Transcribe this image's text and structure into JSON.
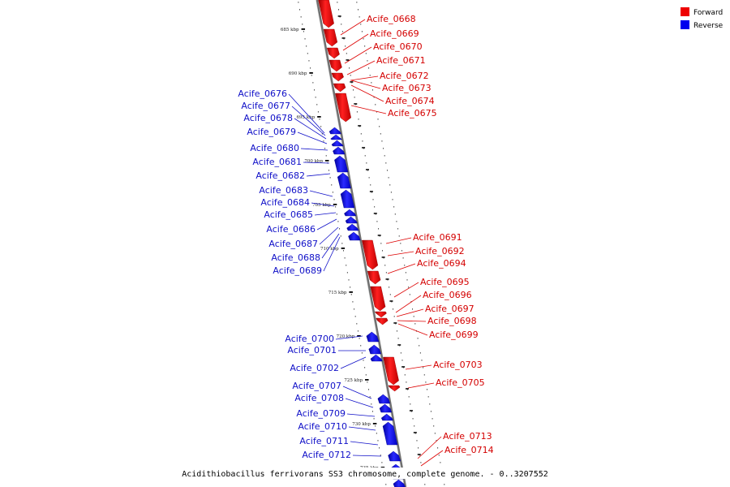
{
  "legend": {
    "forward_label": "Forward",
    "reverse_label": "Reverse",
    "forward_color": "#ee0000",
    "reverse_color": "#0000ee"
  },
  "caption": "Acidithiobacillus ferrivorans SS3 chromosome, complete genome. - 0..3207552",
  "tick_labels": [
    "685 kbp",
    "690 kbp",
    "695 kbp",
    "700 kbp",
    "705 kbp",
    "710 kbp",
    "715 kbp",
    "720 kbp",
    "725 kbp",
    "730 kbp",
    "735 kbp"
  ],
  "genes_forward": [
    "Acife_0668",
    "Acife_0669",
    "Acife_0670",
    "Acife_0671",
    "Acife_0672",
    "Acife_0673",
    "Acife_0674",
    "Acife_0675",
    "Acife_0691",
    "Acife_0692",
    "Acife_0694",
    "Acife_0695",
    "Acife_0696",
    "Acife_0697",
    "Acife_0698",
    "Acife_0699",
    "Acife_0703",
    "Acife_0705",
    "Acife_0713",
    "Acife_0714"
  ],
  "genes_reverse": [
    "Acife_0676",
    "Acife_0677",
    "Acife_0678",
    "Acife_0679",
    "Acife_0680",
    "Acife_0681",
    "Acife_0682",
    "Acife_0683",
    "Acife_0684",
    "Acife_0685",
    "Acife_0686",
    "Acife_0687",
    "Acife_0688",
    "Acife_0689",
    "Acife_0700",
    "Acife_0701",
    "Acife_0702",
    "Acife_0707",
    "Acife_0708",
    "Acife_0709",
    "Acife_0710",
    "Acife_0711",
    "Acife_0712"
  ]
}
